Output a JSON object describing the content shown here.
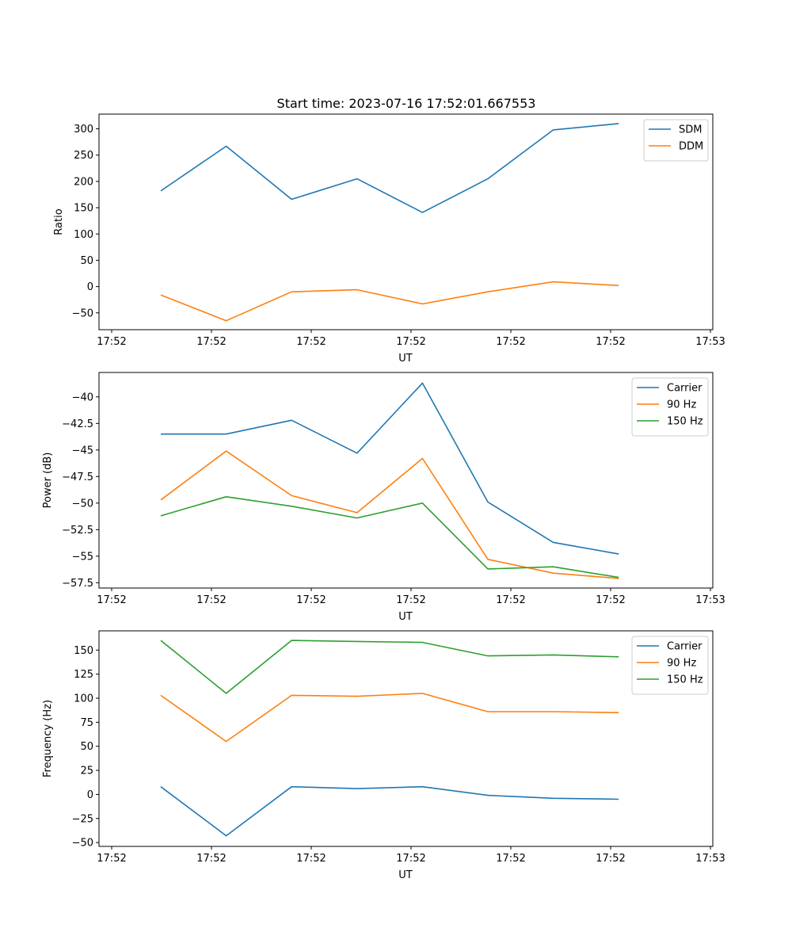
{
  "figure": {
    "title": "Start time: 2023-07-16 17:52:01.667553"
  },
  "chart_data": [
    {
      "type": "line",
      "title": "Start time: 2023-07-16 17:52:01.667553",
      "xlabel": "UT",
      "ylabel": "Ratio",
      "x_ticks": [
        "17:52",
        "17:52",
        "17:52",
        "17:52",
        "17:52",
        "17:52",
        "17:53"
      ],
      "y_ticks": [
        -50,
        0,
        50,
        100,
        150,
        200,
        250,
        300
      ],
      "ylim": [
        -82,
        328
      ],
      "x": [
        1,
        2,
        3,
        4,
        5,
        6,
        7,
        8
      ],
      "legend_position": "top-right",
      "series": [
        {
          "name": "SDM",
          "color": "#1f77b4",
          "values": [
            182,
            267,
            166,
            205,
            141,
            205,
            298,
            310
          ]
        },
        {
          "name": "DDM",
          "color": "#ff7f0e",
          "values": [
            -16,
            -65,
            -10,
            -6,
            -33,
            -10,
            9,
            2
          ]
        }
      ]
    },
    {
      "type": "line",
      "title": "",
      "xlabel": "UT",
      "ylabel": "Power (dB)",
      "x_ticks": [
        "17:52",
        "17:52",
        "17:52",
        "17:52",
        "17:52",
        "17:52",
        "17:53"
      ],
      "y_ticks": [
        -57.5,
        -55.0,
        -52.5,
        -50.0,
        -47.5,
        -45.0,
        -42.5,
        -40.0
      ],
      "ylim": [
        -58.0,
        -37.7
      ],
      "x": [
        1,
        2,
        3,
        4,
        5,
        6,
        7,
        8
      ],
      "legend_position": "top-right",
      "series": [
        {
          "name": "Carrier",
          "color": "#1f77b4",
          "values": [
            -43.5,
            -43.5,
            -42.2,
            -45.3,
            -38.7,
            -49.9,
            -53.7,
            -54.8
          ]
        },
        {
          "name": "90 Hz",
          "color": "#ff7f0e",
          "values": [
            -49.7,
            -45.1,
            -49.3,
            -50.9,
            -45.8,
            -55.3,
            -56.6,
            -57.1
          ]
        },
        {
          "name": "150 Hz",
          "color": "#2ca02c",
          "values": [
            -51.2,
            -49.4,
            -50.3,
            -51.4,
            -50.0,
            -56.2,
            -56.0,
            -57.0
          ]
        }
      ]
    },
    {
      "type": "line",
      "title": "",
      "xlabel": "UT",
      "ylabel": "Frequency (Hz)",
      "x_ticks": [
        "17:52",
        "17:52",
        "17:52",
        "17:52",
        "17:52",
        "17:52",
        "17:53"
      ],
      "y_ticks": [
        -50,
        -25,
        0,
        25,
        50,
        75,
        100,
        125,
        150
      ],
      "ylim": [
        -54,
        170
      ],
      "x": [
        1,
        2,
        3,
        4,
        5,
        6,
        7,
        8
      ],
      "legend_position": "top-right",
      "series": [
        {
          "name": "Carrier",
          "color": "#1f77b4",
          "values": [
            8,
            -43,
            8,
            6,
            8,
            -1,
            -4,
            -5
          ]
        },
        {
          "name": "90 Hz",
          "color": "#ff7f0e",
          "values": [
            103,
            55,
            103,
            102,
            105,
            86,
            86,
            85
          ]
        },
        {
          "name": "150 Hz",
          "color": "#2ca02c",
          "values": [
            160,
            105,
            160,
            159,
            158,
            144,
            145,
            143
          ]
        }
      ]
    }
  ]
}
